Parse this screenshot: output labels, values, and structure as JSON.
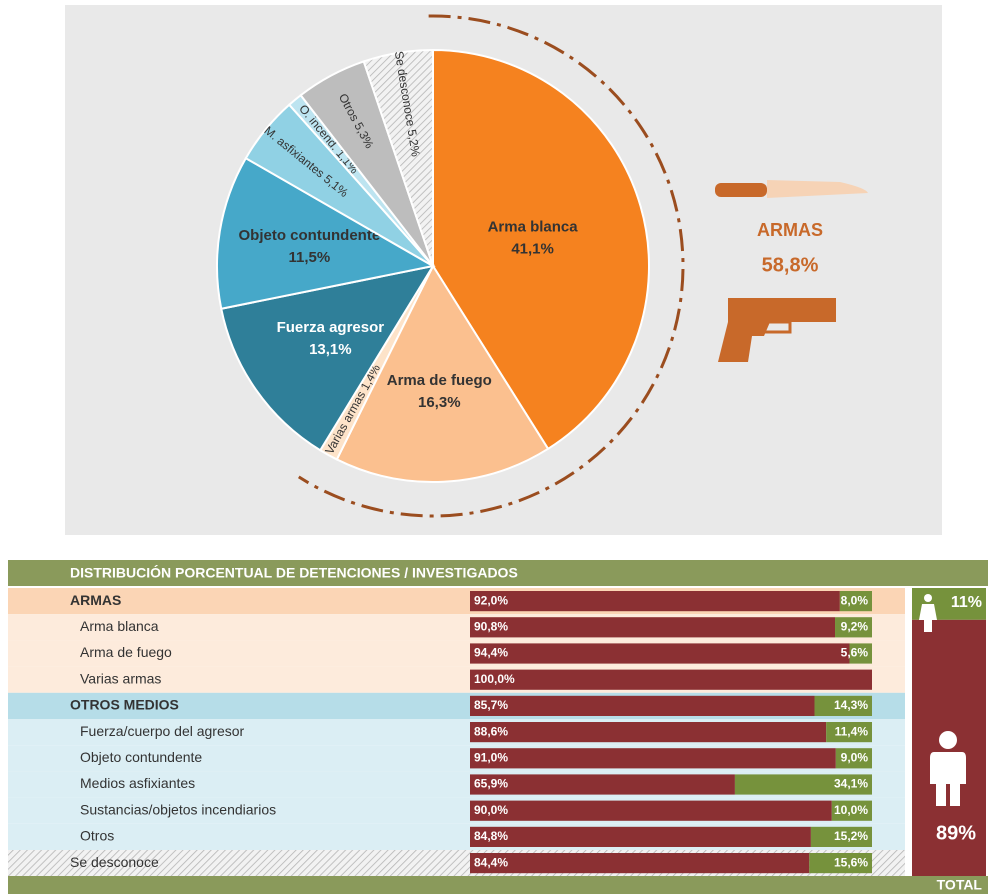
{
  "chart_data": [
    {
      "type": "pie",
      "categories": [
        "Arma blanca",
        "Arma de fuego",
        "Varias armas",
        "Fuerza agresor",
        "Objeto contundente",
        "M. asfixiantes",
        "O. incend.",
        "Otros",
        "Se desconoce"
      ],
      "values": [
        41.1,
        16.3,
        1.4,
        13.1,
        11.5,
        5.1,
        1.1,
        5.3,
        5.2
      ],
      "value_labels": [
        "41,1%",
        "16,3%",
        "1,4%",
        "13,1%",
        "11,5%",
        "5,1%",
        "1,1%",
        "5,3%",
        "5,2%"
      ],
      "colors": [
        "#f5821f",
        "#fbc08f",
        "#fde3c9",
        "#2f7f99",
        "#46a8c9",
        "#90d1e4",
        "#bde4f0",
        "#bdbdbd",
        "hatch"
      ],
      "annotations": [
        "ARMAS",
        "58,8%"
      ]
    },
    {
      "type": "bar",
      "stacked": true,
      "orientation": "horizontal",
      "title": "DISTRIBUCIÓN PORCENTUAL DE DETENCIONES / INVESTIGADOS",
      "categories": [
        "ARMAS",
        "Arma blanca",
        "Arma de fuego",
        "Varias armas",
        "OTROS MEDIOS",
        "Fuerza/cuerpo del agresor",
        "Objeto contundente",
        "Medios asfixiantes",
        "Sustancias/objetos incendiarios",
        "Otros",
        "Se desconoce"
      ],
      "xlim": [
        0,
        100
      ],
      "series": [
        {
          "color": "#8b3033",
          "values": [
            92.0,
            90.8,
            94.4,
            100.0,
            85.7,
            88.6,
            91.0,
            65.9,
            90.0,
            84.8,
            84.4
          ],
          "value_labels": [
            "92,0%",
            "90,8%",
            "94,4%",
            "100,0%",
            "85,7%",
            "88,6%",
            "91,0%",
            "65,9%",
            "90,0%",
            "84,8%",
            "84,4%"
          ],
          "total": 89,
          "total_label": "89%"
        },
        {
          "color": "#76923c",
          "values": [
            8.0,
            9.2,
            5.6,
            null,
            14.3,
            11.4,
            9.0,
            34.1,
            10.0,
            15.2,
            15.6
          ],
          "value_labels": [
            "8,0%",
            "9,2%",
            "5,6%",
            null,
            "14,3%",
            "11,4%",
            "9,0%",
            "34,1%",
            "10,0%",
            "15,2%",
            "15,6%"
          ],
          "total": 11,
          "total_label": "11%"
        }
      ],
      "total_title": "TOTAL"
    }
  ]
}
